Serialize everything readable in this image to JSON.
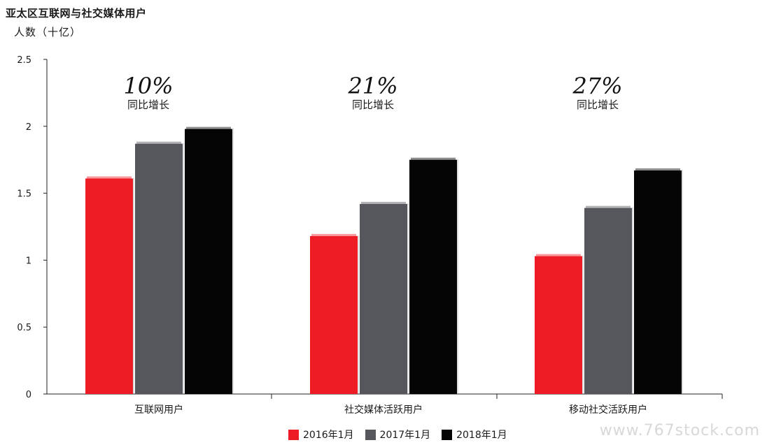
{
  "chart_data": {
    "type": "bar",
    "title": "亚太区互联网与社交媒体用户",
    "ylabel": "人数（十亿）",
    "categories": [
      "互联网用户",
      "社交媒体活跃用户",
      "移动社交活跃用户"
    ],
    "series": [
      {
        "name": "2016年1月",
        "values": [
          1.61,
          1.18,
          1.03
        ],
        "color": "#ee1c25"
      },
      {
        "name": "2017年1月",
        "values": [
          1.87,
          1.42,
          1.39
        ],
        "color": "#56575c"
      },
      {
        "name": "2018年1月",
        "values": [
          1.98,
          1.75,
          1.67
        ],
        "color": "#050505"
      }
    ],
    "ylim": [
      0,
      2.5
    ],
    "yticks": [
      {
        "value": 0,
        "label": "0"
      },
      {
        "value": 0.5,
        "label": "0.5"
      },
      {
        "value": 1,
        "label": "1"
      },
      {
        "value": 1.5,
        "label": "1.5"
      },
      {
        "value": 2,
        "label": "2"
      },
      {
        "value": 2.5,
        "label": "2.5"
      }
    ],
    "annotations": [
      {
        "value": "10%",
        "label": "同比增长"
      },
      {
        "value": "21%",
        "label": "同比增长"
      },
      {
        "value": "27%",
        "label": "同比增长"
      }
    ],
    "legend_position": "bottom-center",
    "grid": false
  },
  "watermark": "www.767stock.com"
}
